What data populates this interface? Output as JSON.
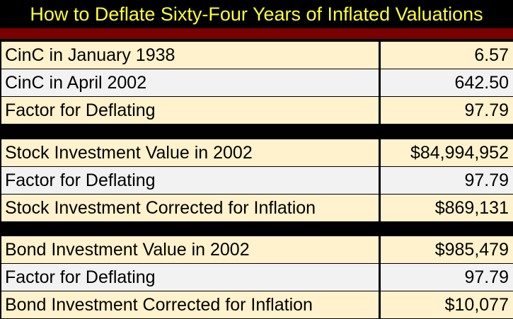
{
  "title": "How to Deflate Sixty-Four Years of Inflated Valuations",
  "colors": {
    "title_text": "#ffff33",
    "title_background": "#000000",
    "accent_bar": "#7a0000",
    "row_cream": "#fff2cc",
    "row_grey": "#f2f2f2",
    "separator": "#000000"
  },
  "groups": [
    {
      "rows": [
        {
          "label": "CinC in January 1938",
          "value": "6.57"
        },
        {
          "label": "CinC in April 2002",
          "value": "642.50"
        },
        {
          "label": "Factor for Deflating",
          "value": "97.79"
        }
      ]
    },
    {
      "rows": [
        {
          "label": "Stock Investment Value in 2002",
          "value": "$84,994,952"
        },
        {
          "label": "Factor for Deflating",
          "value": "97.79"
        },
        {
          "label": "Stock Investment Corrected for Inflation",
          "value": "$869,131"
        }
      ]
    },
    {
      "rows": [
        {
          "label": "Bond Investment Value in 2002",
          "value": "$985,479"
        },
        {
          "label": "Factor for Deflating",
          "value": "97.79"
        },
        {
          "label": "Bond Investment Corrected for Inflation",
          "value": "$10,077"
        }
      ]
    }
  ]
}
